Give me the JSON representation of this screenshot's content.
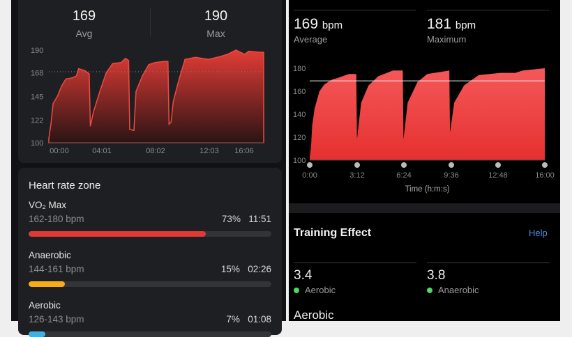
{
  "left": {
    "stats": [
      {
        "value": "169",
        "label": "Avg"
      },
      {
        "value": "190",
        "label": "Max"
      }
    ],
    "zones_title": "Heart rate zone",
    "zones": [
      {
        "name": "VO₂ Max",
        "range": "162-180 bpm",
        "percent": "73%",
        "time": "11:51",
        "fill": 73,
        "color": "#e03a36"
      },
      {
        "name": "Anaerobic",
        "range": "144-161 bpm",
        "percent": "15%",
        "time": "02:26",
        "fill": 15,
        "color": "#f7ad16"
      },
      {
        "name": "Aerobic",
        "range": "126-143 bpm",
        "percent": "7%",
        "time": "01:08",
        "fill": 7,
        "color": "#3fb0e0"
      }
    ]
  },
  "right": {
    "stats": [
      {
        "value": "169",
        "unit": "bpm",
        "label": "Average"
      },
      {
        "value": "181",
        "unit": "bpm",
        "label": "Maximum"
      }
    ],
    "training_title": "Training Effect",
    "help": "Help",
    "training": [
      {
        "value": "3.4",
        "label": "Aerobic",
        "color": "#4cd964"
      },
      {
        "value": "3.8",
        "label": "Anaerobic",
        "color": "#4cd964"
      }
    ],
    "section_next": "Aerobic"
  },
  "chart_data": [
    {
      "type": "area",
      "ylim": [
        100,
        190
      ],
      "yticks": [
        100,
        122,
        145,
        168,
        190
      ],
      "xticks": [
        "00:00",
        "04:01",
        "08:02",
        "12:03",
        "16:06"
      ],
      "average_line": 169,
      "color": "#e03a36",
      "x": [
        "0:00",
        "0:10",
        "0:20",
        "0:40",
        "1:00",
        "1:20",
        "1:50",
        "2:10",
        "2:20",
        "2:50",
        "3:10",
        "3:15",
        "3:30",
        "4:00",
        "4:30",
        "5:00",
        "5:40",
        "6:00",
        "6:15",
        "6:20",
        "6:40",
        "6:50",
        "7:20",
        "7:50",
        "8:20",
        "9:00",
        "9:20",
        "9:25",
        "9:35",
        "9:45",
        "10:10",
        "10:40",
        "11:30",
        "12:30",
        "13:30",
        "14:00",
        "14:40",
        "15:20",
        "15:40",
        "16:30",
        "16:50"
      ],
      "y": [
        104,
        118,
        138,
        145,
        155,
        162,
        163,
        165,
        172,
        170,
        167,
        116,
        130,
        150,
        168,
        177,
        178,
        182,
        180,
        113,
        112,
        150,
        165,
        176,
        178,
        179,
        179,
        118,
        120,
        140,
        160,
        181,
        183,
        181,
        184,
        186,
        190,
        186,
        189,
        188,
        188
      ]
    },
    {
      "type": "area",
      "ylim": [
        100,
        180
      ],
      "yticks": [
        100,
        120,
        140,
        160,
        180
      ],
      "xticks": [
        "0:00",
        "3:12",
        "6:24",
        "9:36",
        "12:48",
        "16:00"
      ],
      "xlabel": "Time (h:m:s)",
      "average_line": 169,
      "color": "#f0474a",
      "x": [
        "0:00",
        "0:03",
        "0:10",
        "0:20",
        "0:40",
        "1:00",
        "1:30",
        "2:00",
        "2:40",
        "3:10",
        "3:13",
        "3:30",
        "4:00",
        "4:40",
        "5:40",
        "6:20",
        "6:23",
        "6:40",
        "7:20",
        "8:00",
        "9:30",
        "9:33",
        "9:50",
        "10:30",
        "11:30",
        "13:00",
        "14:00",
        "14:30",
        "16:00"
      ],
      "y": [
        115,
        103,
        130,
        145,
        160,
        166,
        170,
        172,
        175,
        175,
        118,
        150,
        165,
        173,
        178,
        178,
        118,
        150,
        168,
        175,
        178,
        124,
        150,
        165,
        174,
        176,
        176,
        178,
        180
      ]
    }
  ]
}
